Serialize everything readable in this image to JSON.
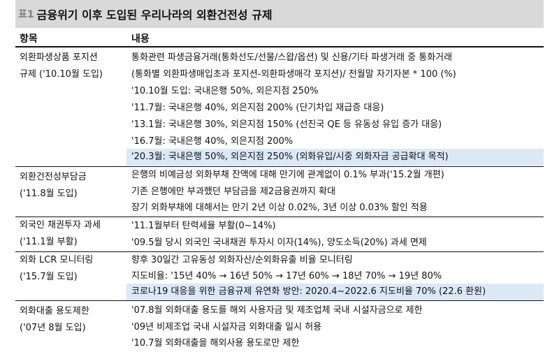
{
  "title": {
    "prefix": "표1",
    "text": "금융위기 이후 도입된 우리나라의 외환건전성 규제"
  },
  "header": {
    "item": "항목",
    "content": "내용"
  },
  "sections": [
    {
      "category": [
        "외환파생상품 포지션",
        "규제 ('10.10월 도입)"
      ],
      "lines": [
        "통화관련 파생금융거래(통화선도/선물/스왑/옵션) 및 신용/기타 파생거래 중 통화거래",
        "(통화별 외환파생매입초과 포지션-외환파생매각 포지션)/ 전월말 자기자본 * 100 (%)",
        "'10.10월 도입: 국내은행 50%, 외은지점 250%",
        "'11.7월: 국내은행 40%, 외은지점 200% (단기차입 재급증 대응)",
        "'13.1월: 국내은행 30%, 외은지점 150% (선진국 QE 등 유동성 유입 증가 대응)",
        "'16.7월: 국내은행 40%, 외은지점 200%",
        "'20.3월: 국내은행 50%, 외은지점 250% (외화유입/시중 외화자금 공급확대 목적)"
      ],
      "highlight": [
        6
      ]
    },
    {
      "category": [
        "외환건전성부담금",
        "('11.8월 도입)"
      ],
      "lines": [
        "은행의 비예금성 외화부채 잔액에 대해 만기에 관계없이 0.1% 부과('15.2월 개편)",
        "기존 은행에만 부과했던 부담금을 제2금융권까지 확대",
        "장기 외화부채에 대해서는 만기 2년 이상 0.02%, 3년 이상 0.03% 할인 적용"
      ],
      "highlight": []
    },
    {
      "category": [
        "외국인 채권투자 과세",
        "('11.1월 부활)"
      ],
      "lines": [
        "'11.1월부터 탄력세율 부활(0~14%)",
        "'09.5월 당시 외국인 국내채권 투자시 이자(14%), 양도소득(20%) 과세 면제"
      ],
      "highlight": []
    },
    {
      "category": [
        "외화 LCR 모니터링",
        "('15.7월 도입)"
      ],
      "lines": [
        "향후 30일간 고유동성 외화자산/순외화유출 비율 모니터링",
        "지도비율: '15년 40% → 16년 50% → 17년 60% → 18년 70% → 19년 80%",
        "코로나19 대응을 위한 금융규제 유연화 방안: 2020.4~2022.6 지도비율 70% (22.6 환원)"
      ],
      "highlight": [
        2
      ]
    },
    {
      "category": [
        "외화대출 용도제한",
        "('07년 8월 도입)"
      ],
      "lines": [
        "'07.8월 외화대출 용도를 해외 사용자금 및 제조업체 국내 시설자금으로 제한",
        "'09년 비제조업 국내 시설자금 외화대출 일시 허용",
        "'10.7월 외화대출을 해외사용 용도로만 제한"
      ],
      "highlight": []
    }
  ]
}
